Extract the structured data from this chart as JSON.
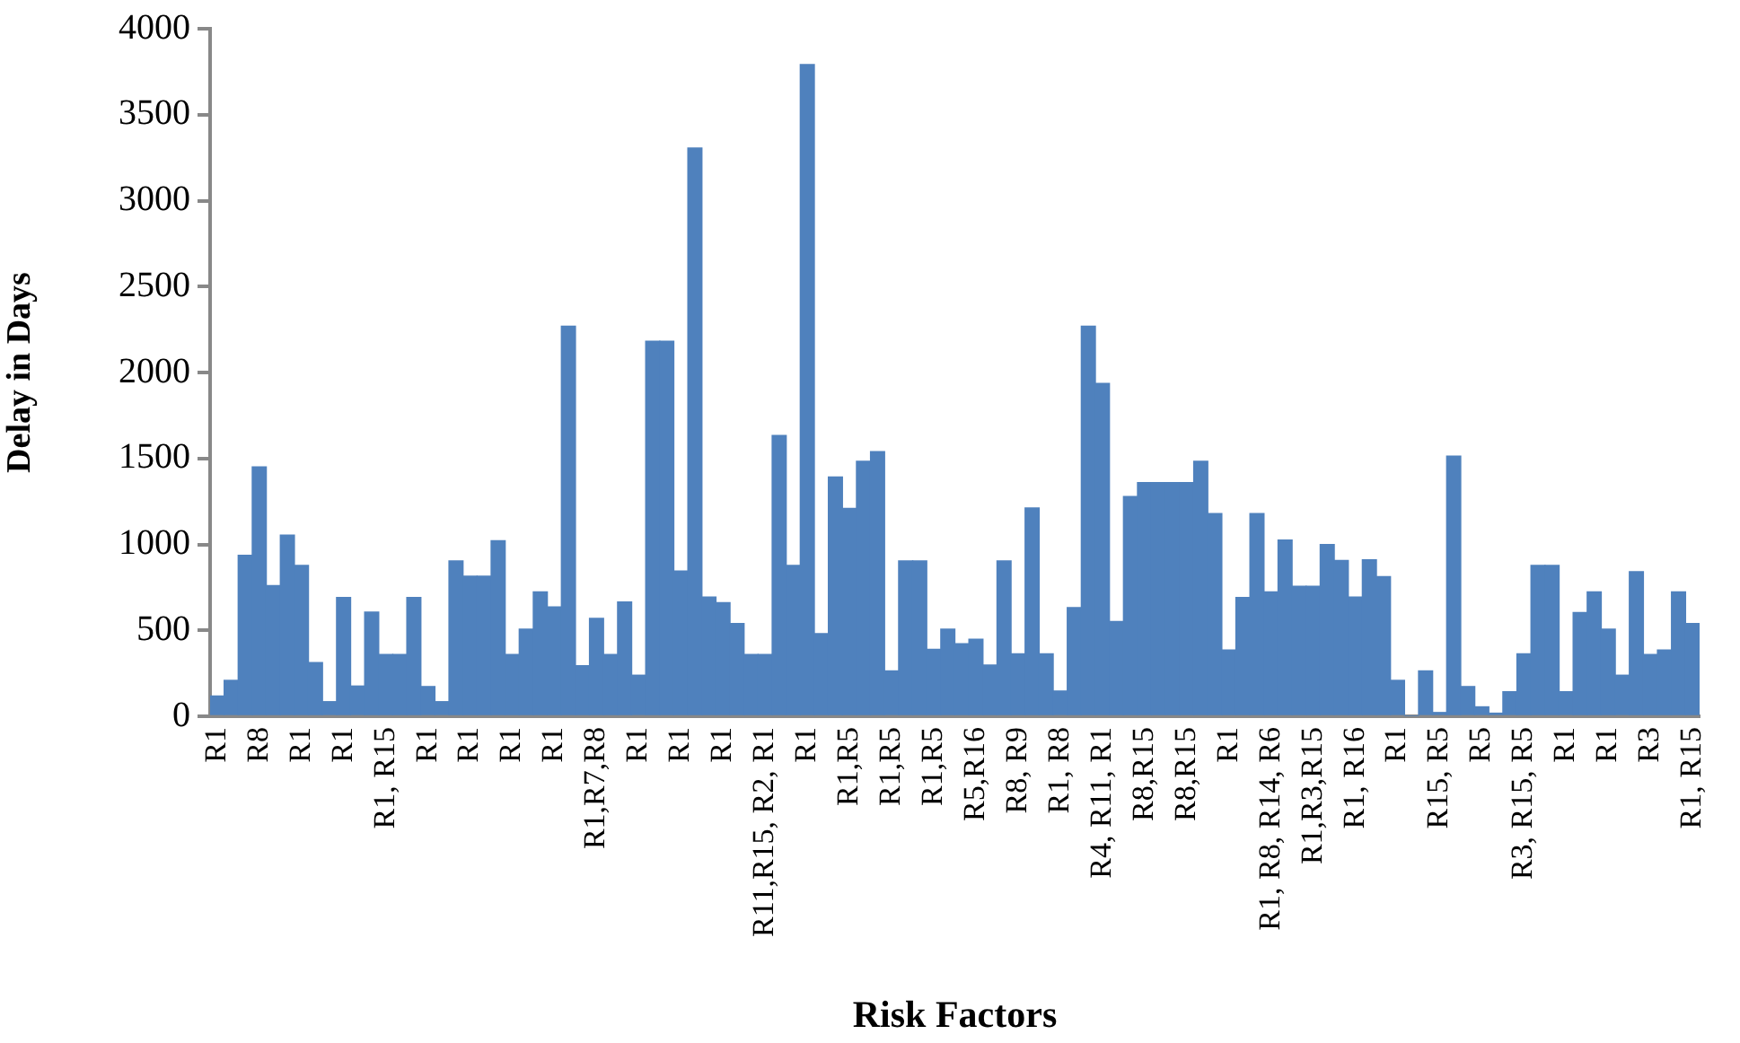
{
  "chart_data": {
    "type": "bar",
    "xlabel": "Risk Factors",
    "ylabel": "Delay in Days",
    "color": "#4f81bd",
    "grid": false,
    "legend": false,
    "ylim": [
      0,
      4000
    ],
    "yticks": [
      0,
      500,
      1000,
      1500,
      2000,
      2500,
      3000,
      3500,
      4000
    ],
    "categories": [
      "R1",
      null,
      null,
      "R8",
      null,
      null,
      "R1",
      null,
      null,
      "R1",
      null,
      null,
      "R1, R15",
      null,
      null,
      "R1",
      null,
      null,
      "R1",
      null,
      null,
      "R1",
      null,
      null,
      "R1",
      null,
      null,
      "R1,R7,R8",
      null,
      null,
      "R1",
      null,
      null,
      "R1",
      null,
      null,
      "R1",
      null,
      null,
      "R11,R15, R2, R1",
      null,
      null,
      "R1",
      null,
      null,
      "R1,R5",
      null,
      null,
      "R1,R5",
      null,
      null,
      "R1,R5",
      null,
      null,
      "R5,R16",
      null,
      null,
      "R8, R9",
      null,
      null,
      "R1, R8",
      null,
      null,
      "R4, R11, R1",
      null,
      null,
      "R8,R15",
      null,
      null,
      "R8,R15",
      null,
      null,
      "R1",
      null,
      null,
      "R1, R8, R14, R6",
      null,
      null,
      "R1,R3,R15",
      null,
      null,
      "R1, R16",
      null,
      null,
      "R1",
      null,
      null,
      "R15, R5",
      null,
      null,
      "R5",
      null,
      null,
      "R3, R15, R5",
      null,
      null,
      "R1",
      null,
      null,
      "R1",
      null,
      null,
      "R3",
      null,
      null,
      "R1, R15"
    ],
    "values": [
      118,
      209,
      936,
      1451,
      760,
      1054,
      878,
      312,
      85,
      691,
      176,
      606,
      360,
      360,
      691,
      173,
      85,
      904,
      815,
      815,
      1021,
      360,
      507,
      724,
      636,
      2270,
      294,
      570,
      360,
      665,
      239,
      2182,
      2182,
      845,
      3306,
      694,
      661,
      540,
      360,
      360,
      1634,
      878,
      3791,
      481,
      1392,
      1209,
      1484,
      1539,
      264,
      904,
      904,
      389,
      507,
      422,
      448,
      298,
      904,
      364,
      1212,
      364,
      147,
      632,
      2270,
      1936,
      551,
      1278,
      1359,
      1359,
      1359,
      1359,
      1484,
      1179,
      386,
      691,
      1179,
      724,
      1025,
      757,
      757,
      999,
      907,
      694,
      911,
      812,
      209,
      0,
      264,
      22,
      1513,
      173,
      55,
      18,
      143,
      364,
      878,
      878,
      143,
      603,
      724,
      507,
      239,
      841,
      360,
      386,
      724,
      540
    ]
  }
}
